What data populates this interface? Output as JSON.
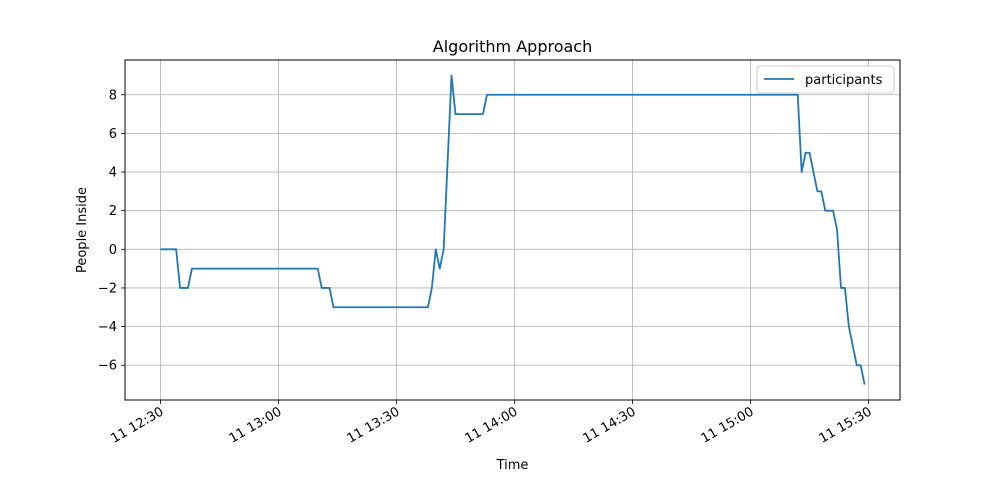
{
  "chart_data": {
    "type": "line",
    "title": "Algorithm Approach",
    "xlabel": "Time",
    "ylabel": "People Inside",
    "x_type": "datetime",
    "date": "2021-01-11",
    "xlim": [
      "12:21",
      "15:38"
    ],
    "ylim": [
      -7.8,
      9.8
    ],
    "grid": true,
    "legend_position": "top-right",
    "x_ticks": [
      {
        "t": "12:30",
        "label": "11 12:30"
      },
      {
        "t": "13:00",
        "label": "11 13:00"
      },
      {
        "t": "13:30",
        "label": "11 13:30"
      },
      {
        "t": "14:00",
        "label": "11 14:00"
      },
      {
        "t": "14:30",
        "label": "11 14:30"
      },
      {
        "t": "15:00",
        "label": "11 15:00"
      },
      {
        "t": "15:30",
        "label": "11 15:30"
      }
    ],
    "y_ticks": [
      {
        "v": 8,
        "label": "8"
      },
      {
        "v": 6,
        "label": "6"
      },
      {
        "v": 4,
        "label": "4"
      },
      {
        "v": 2,
        "label": "2"
      },
      {
        "v": 0,
        "label": "0"
      },
      {
        "v": -2,
        "label": "−2"
      },
      {
        "v": -4,
        "label": "−4"
      },
      {
        "v": -6,
        "label": "−6"
      }
    ],
    "series": [
      {
        "name": "participants",
        "color": "#1f77b4",
        "points": [
          [
            "12:30",
            0
          ],
          [
            "12:34",
            0
          ],
          [
            "12:35",
            -2
          ],
          [
            "12:37",
            -2
          ],
          [
            "12:38",
            -1
          ],
          [
            "13:10",
            -1
          ],
          [
            "13:11",
            -2
          ],
          [
            "13:13",
            -2
          ],
          [
            "13:14",
            -3
          ],
          [
            "13:38",
            -3
          ],
          [
            "13:39",
            -2
          ],
          [
            "13:40",
            0
          ],
          [
            "13:41",
            -1
          ],
          [
            "13:42",
            0
          ],
          [
            "13:44",
            9
          ],
          [
            "13:45",
            7
          ],
          [
            "13:52",
            7
          ],
          [
            "13:53",
            8
          ],
          [
            "15:12",
            8
          ],
          [
            "15:13",
            4
          ],
          [
            "15:14",
            5
          ],
          [
            "15:15",
            5
          ],
          [
            "15:17",
            3
          ],
          [
            "15:18",
            3
          ],
          [
            "15:19",
            2
          ],
          [
            "15:21",
            2
          ],
          [
            "15:22",
            1
          ],
          [
            "15:23",
            -2
          ],
          [
            "15:24",
            -2
          ],
          [
            "15:25",
            -4
          ],
          [
            "15:27",
            -6
          ],
          [
            "15:28",
            -6
          ],
          [
            "15:29",
            -7
          ]
        ]
      }
    ]
  }
}
